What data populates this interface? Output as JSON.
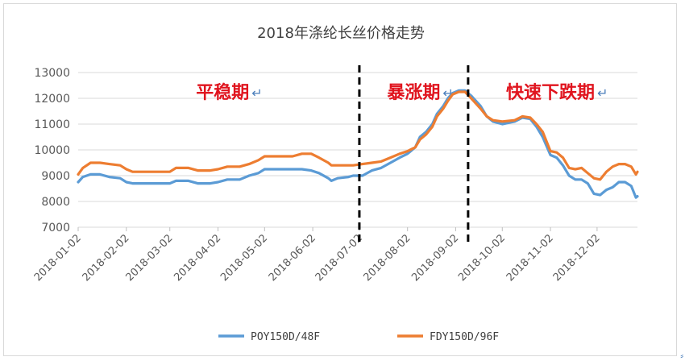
{
  "chart_data": {
    "type": "line",
    "title": "2018年涤纶长丝价格走势",
    "xlabel": "",
    "ylabel": "",
    "ylim": [
      7000,
      13000
    ],
    "yticks": [
      7000,
      8000,
      9000,
      10000,
      11000,
      12000,
      13000
    ],
    "x_tick_labels": [
      "2018-01-02",
      "2018-02-02",
      "2018-03-02",
      "2018-04-02",
      "2018-05-02",
      "2018-06-02",
      "2018-07-02",
      "2018-08-02",
      "2018-09-02",
      "2018-10-02",
      "2018-11-02",
      "2018-12-02"
    ],
    "xlim": [
      "2018-01-02",
      "2018-12-28"
    ],
    "grid": "horizontal",
    "legend_position": "bottom",
    "colors": {
      "POY150D/48F": "#5b9bd5",
      "FDY150D/96F": "#ed7d31"
    },
    "series": [
      {
        "name": "POY150D/48F",
        "points": [
          [
            "2018-01-02",
            8750
          ],
          [
            "2018-01-05",
            8950
          ],
          [
            "2018-01-10",
            9050
          ],
          [
            "2018-01-16",
            9050
          ],
          [
            "2018-01-22",
            8950
          ],
          [
            "2018-01-29",
            8900
          ],
          [
            "2018-02-02",
            8750
          ],
          [
            "2018-02-06",
            8700
          ],
          [
            "2018-02-14",
            8700
          ],
          [
            "2018-02-26",
            8700
          ],
          [
            "2018-03-02",
            8700
          ],
          [
            "2018-03-06",
            8800
          ],
          [
            "2018-03-14",
            8800
          ],
          [
            "2018-03-20",
            8700
          ],
          [
            "2018-03-28",
            8700
          ],
          [
            "2018-04-02",
            8750
          ],
          [
            "2018-04-08",
            8850
          ],
          [
            "2018-04-16",
            8850
          ],
          [
            "2018-04-22",
            9000
          ],
          [
            "2018-04-28",
            9100
          ],
          [
            "2018-05-02",
            9250
          ],
          [
            "2018-05-08",
            9250
          ],
          [
            "2018-05-14",
            9250
          ],
          [
            "2018-05-20",
            9250
          ],
          [
            "2018-05-26",
            9250
          ],
          [
            "2018-06-01",
            9200
          ],
          [
            "2018-06-06",
            9100
          ],
          [
            "2018-06-12",
            8900
          ],
          [
            "2018-06-14",
            8800
          ],
          [
            "2018-06-18",
            8900
          ],
          [
            "2018-06-25",
            8950
          ],
          [
            "2018-06-28",
            9000
          ],
          [
            "2018-07-04",
            9000
          ],
          [
            "2018-07-10",
            9200
          ],
          [
            "2018-07-16",
            9300
          ],
          [
            "2018-07-22",
            9500
          ],
          [
            "2018-07-28",
            9700
          ],
          [
            "2018-08-02",
            9850
          ],
          [
            "2018-08-07",
            10100
          ],
          [
            "2018-08-10",
            10500
          ],
          [
            "2018-08-14",
            10700
          ],
          [
            "2018-08-18",
            11000
          ],
          [
            "2018-08-21",
            11400
          ],
          [
            "2018-08-25",
            11700
          ],
          [
            "2018-08-28",
            12000
          ],
          [
            "2018-08-31",
            12200
          ],
          [
            "2018-09-04",
            12300
          ],
          [
            "2018-09-08",
            12300
          ],
          [
            "2018-09-12",
            12100
          ],
          [
            "2018-09-18",
            11700
          ],
          [
            "2018-09-22",
            11300
          ],
          [
            "2018-09-26",
            11100
          ],
          [
            "2018-10-02",
            11000
          ],
          [
            "2018-10-10",
            11100
          ],
          [
            "2018-10-15",
            11250
          ],
          [
            "2018-10-20",
            11200
          ],
          [
            "2018-10-24",
            10900
          ],
          [
            "2018-10-28",
            10500
          ],
          [
            "2018-11-02",
            9800
          ],
          [
            "2018-11-06",
            9700
          ],
          [
            "2018-11-10",
            9400
          ],
          [
            "2018-11-14",
            9000
          ],
          [
            "2018-11-18",
            8850
          ],
          [
            "2018-11-22",
            8850
          ],
          [
            "2018-11-26",
            8700
          ],
          [
            "2018-11-30",
            8300
          ],
          [
            "2018-12-04",
            8250
          ],
          [
            "2018-12-08",
            8450
          ],
          [
            "2018-12-12",
            8550
          ],
          [
            "2018-12-16",
            8750
          ],
          [
            "2018-12-20",
            8750
          ],
          [
            "2018-12-24",
            8600
          ],
          [
            "2018-12-27",
            8150
          ],
          [
            "2018-12-28",
            8200
          ]
        ]
      },
      {
        "name": "FDY150D/96F",
        "points": [
          [
            "2018-01-02",
            9050
          ],
          [
            "2018-01-05",
            9300
          ],
          [
            "2018-01-10",
            9500
          ],
          [
            "2018-01-16",
            9500
          ],
          [
            "2018-01-22",
            9450
          ],
          [
            "2018-01-29",
            9400
          ],
          [
            "2018-02-02",
            9250
          ],
          [
            "2018-02-06",
            9150
          ],
          [
            "2018-02-14",
            9150
          ],
          [
            "2018-02-26",
            9150
          ],
          [
            "2018-03-02",
            9150
          ],
          [
            "2018-03-06",
            9300
          ],
          [
            "2018-03-14",
            9300
          ],
          [
            "2018-03-20",
            9200
          ],
          [
            "2018-03-28",
            9200
          ],
          [
            "2018-04-02",
            9250
          ],
          [
            "2018-04-08",
            9350
          ],
          [
            "2018-04-16",
            9350
          ],
          [
            "2018-04-22",
            9450
          ],
          [
            "2018-04-28",
            9600
          ],
          [
            "2018-05-02",
            9750
          ],
          [
            "2018-05-08",
            9750
          ],
          [
            "2018-05-14",
            9750
          ],
          [
            "2018-05-20",
            9750
          ],
          [
            "2018-05-26",
            9850
          ],
          [
            "2018-06-01",
            9850
          ],
          [
            "2018-06-06",
            9700
          ],
          [
            "2018-06-12",
            9500
          ],
          [
            "2018-06-14",
            9400
          ],
          [
            "2018-06-18",
            9400
          ],
          [
            "2018-06-25",
            9400
          ],
          [
            "2018-06-28",
            9400
          ],
          [
            "2018-07-04",
            9450
          ],
          [
            "2018-07-10",
            9500
          ],
          [
            "2018-07-16",
            9550
          ],
          [
            "2018-07-22",
            9700
          ],
          [
            "2018-07-28",
            9850
          ],
          [
            "2018-08-02",
            9950
          ],
          [
            "2018-08-07",
            10100
          ],
          [
            "2018-08-10",
            10400
          ],
          [
            "2018-08-14",
            10600
          ],
          [
            "2018-08-18",
            10900
          ],
          [
            "2018-08-21",
            11300
          ],
          [
            "2018-08-25",
            11600
          ],
          [
            "2018-08-28",
            11900
          ],
          [
            "2018-08-31",
            12150
          ],
          [
            "2018-09-04",
            12250
          ],
          [
            "2018-09-08",
            12250
          ],
          [
            "2018-09-12",
            12000
          ],
          [
            "2018-09-18",
            11600
          ],
          [
            "2018-09-22",
            11300
          ],
          [
            "2018-09-26",
            11150
          ],
          [
            "2018-10-02",
            11100
          ],
          [
            "2018-10-10",
            11150
          ],
          [
            "2018-10-15",
            11300
          ],
          [
            "2018-10-20",
            11250
          ],
          [
            "2018-10-24",
            11000
          ],
          [
            "2018-10-28",
            10700
          ],
          [
            "2018-11-02",
            9950
          ],
          [
            "2018-11-06",
            9900
          ],
          [
            "2018-11-10",
            9700
          ],
          [
            "2018-11-14",
            9300
          ],
          [
            "2018-11-18",
            9250
          ],
          [
            "2018-11-22",
            9300
          ],
          [
            "2018-11-26",
            9100
          ],
          [
            "2018-11-30",
            8900
          ],
          [
            "2018-12-04",
            8850
          ],
          [
            "2018-12-08",
            9150
          ],
          [
            "2018-12-12",
            9350
          ],
          [
            "2018-12-16",
            9450
          ],
          [
            "2018-12-20",
            9450
          ],
          [
            "2018-12-24",
            9350
          ],
          [
            "2018-12-27",
            9050
          ],
          [
            "2018-12-28",
            9150
          ]
        ]
      }
    ],
    "dividers": [
      "2018-07-02",
      "2018-09-10"
    ],
    "annotations": [
      {
        "text": "平稳期",
        "x": "2018-04-05",
        "y": 12250
      },
      {
        "text": "暴涨期",
        "x": "2018-08-06",
        "y": 12250
      },
      {
        "text": "快速下跌期",
        "x": "2018-11-02",
        "y": 12250
      }
    ],
    "annotation_marker": "↵"
  },
  "corner_mark": "⸗"
}
